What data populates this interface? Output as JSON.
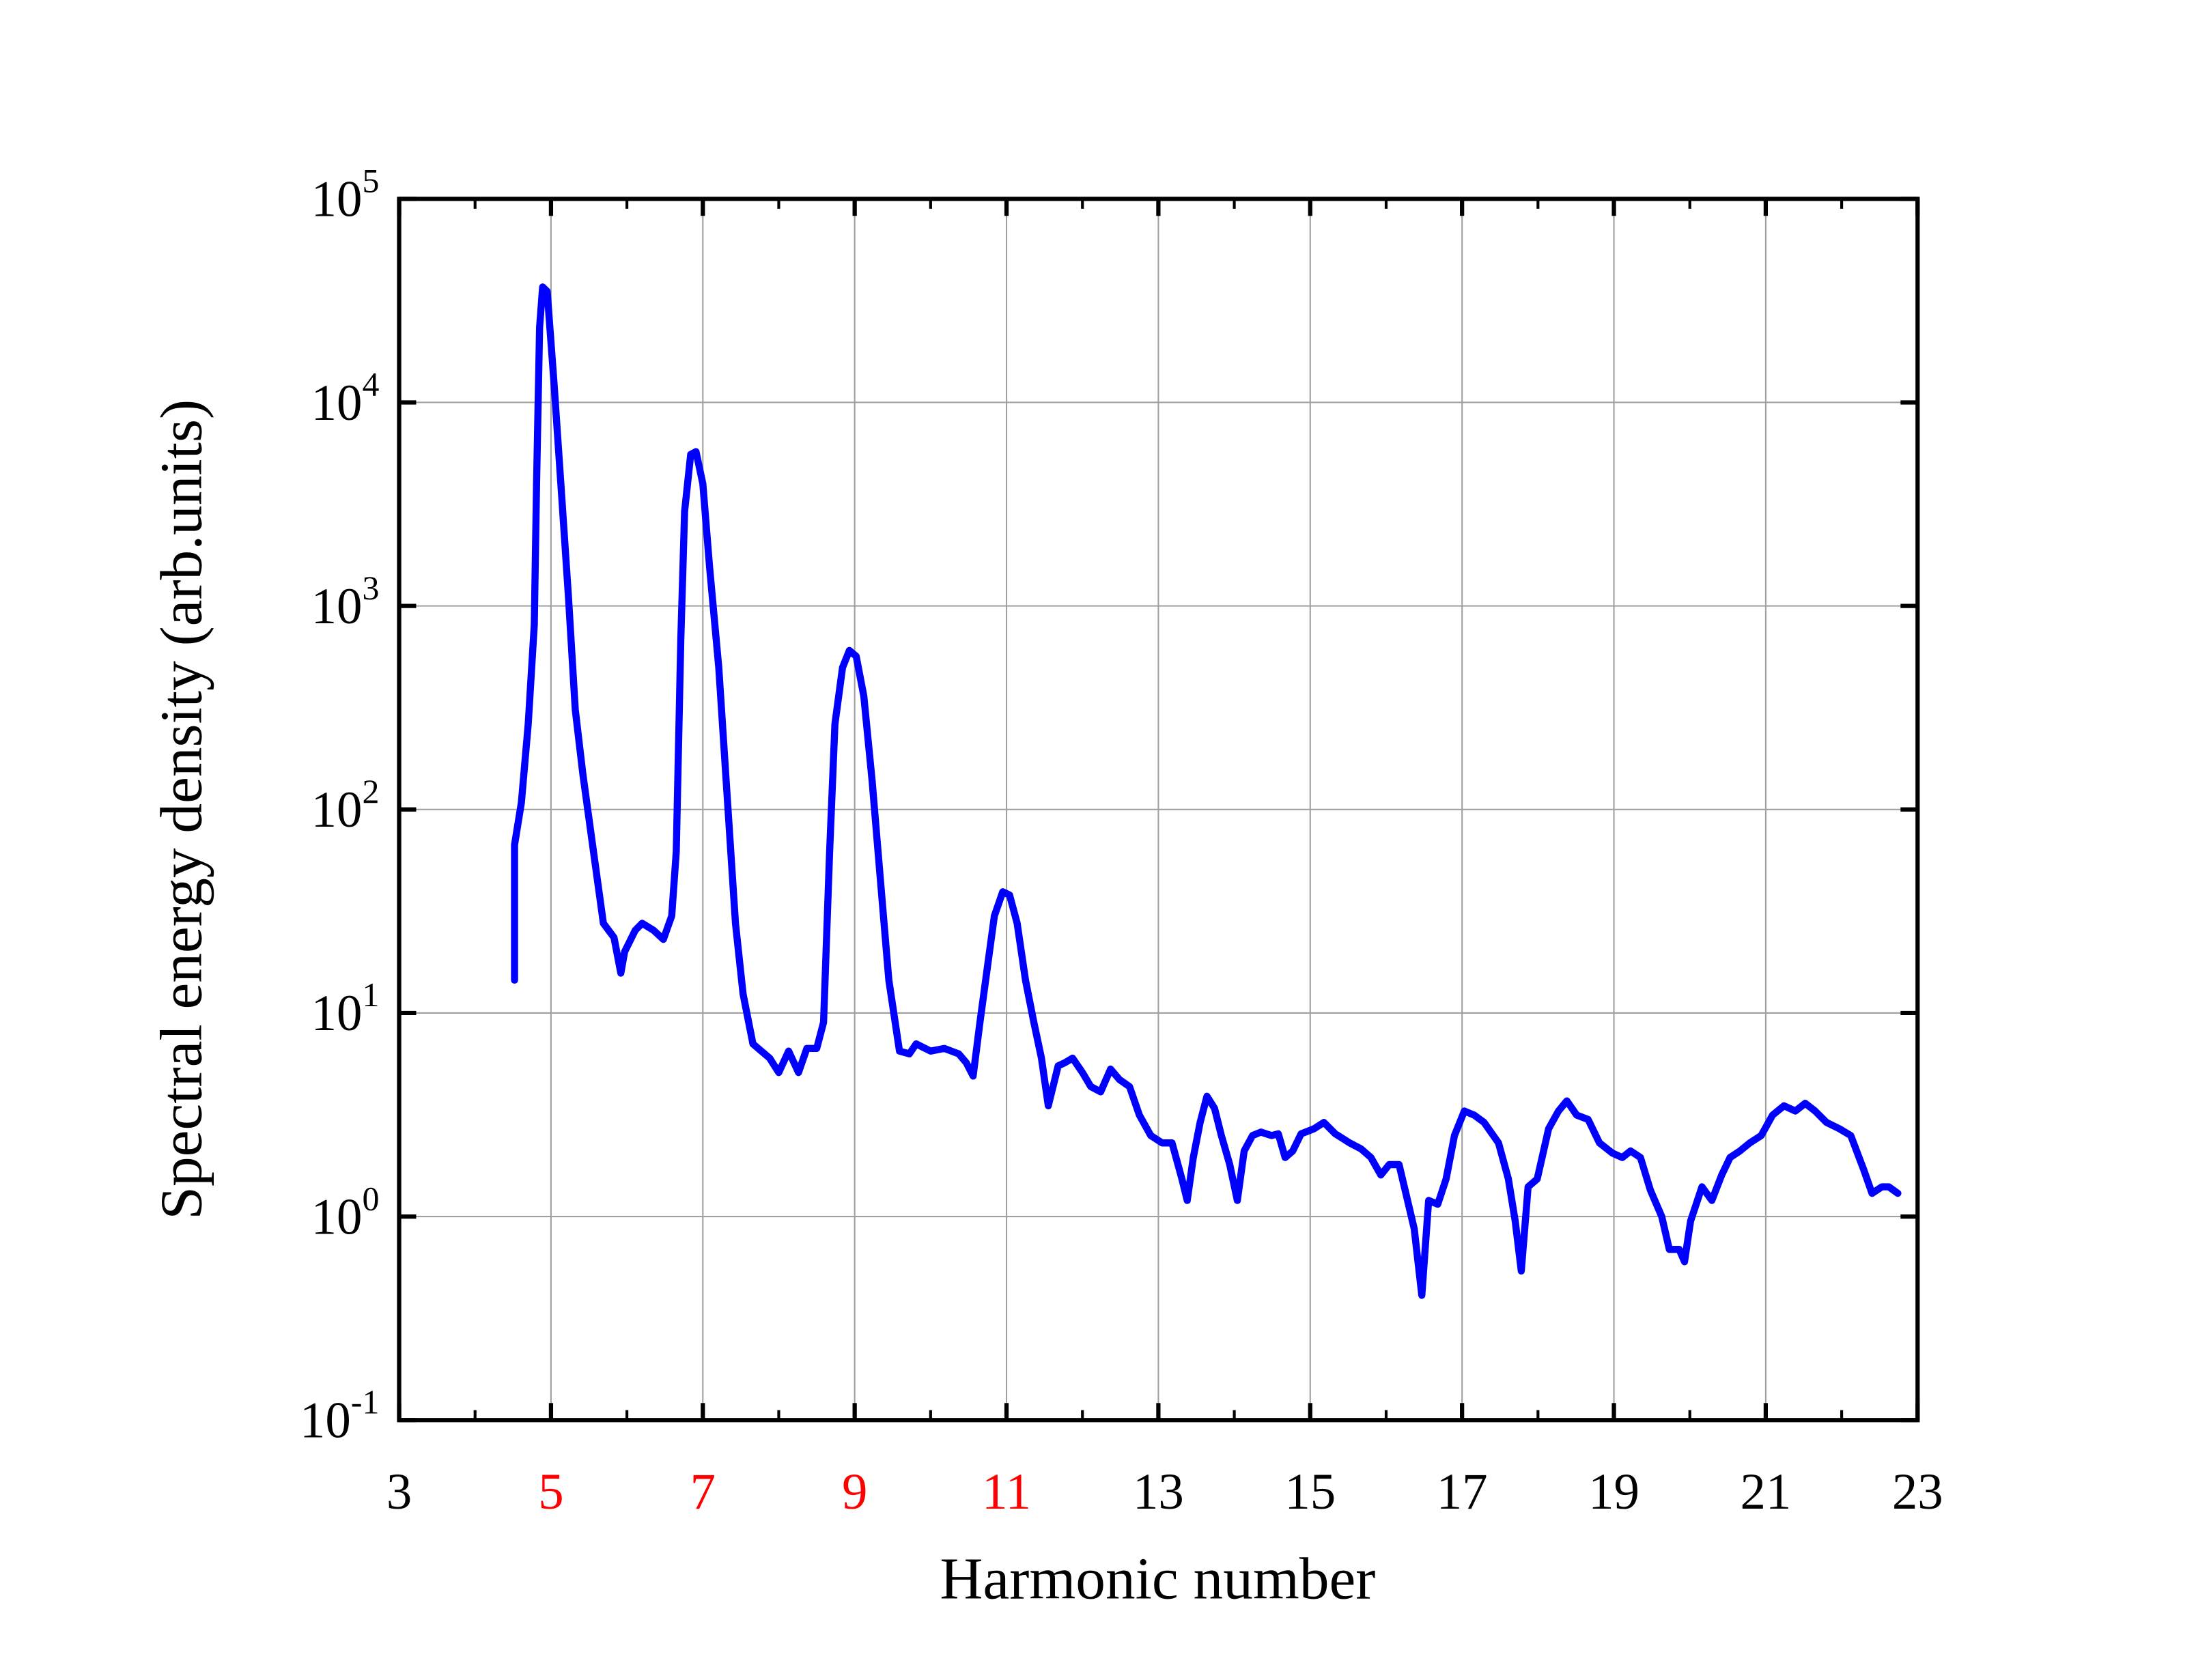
{
  "chart_data": {
    "type": "line",
    "xlabel": "Harmonic number",
    "ylabel": "Spectral energy density (arb.units)",
    "xlim": [
      3,
      23
    ],
    "xticks": [
      3,
      5,
      7,
      9,
      11,
      13,
      15,
      17,
      19,
      21,
      23
    ],
    "xtick_colors": [
      "#000000",
      "#ff0000",
      "#ff0000",
      "#ff0000",
      "#ff0000",
      "#000000",
      "#000000",
      "#000000",
      "#000000",
      "#000000",
      "#000000"
    ],
    "ylim": [
      0.1,
      100000
    ],
    "ylog": true,
    "yticks": [
      {
        "value": 0.1,
        "label": "10",
        "exponent": "-1"
      },
      {
        "value": 1,
        "label": "10",
        "exponent": "0"
      },
      {
        "value": 10,
        "label": "10",
        "exponent": "1"
      },
      {
        "value": 100,
        "label": "10",
        "exponent": "2"
      },
      {
        "value": 1000,
        "label": "10",
        "exponent": "3"
      },
      {
        "value": 10000,
        "label": "10",
        "exponent": "4"
      },
      {
        "value": 100000,
        "label": "10",
        "exponent": "5"
      }
    ],
    "grid": true,
    "mirror_ticks": true,
    "series": [
      {
        "color": "#0000ff",
        "x": [
          4.52,
          4.52,
          4.61,
          4.7,
          4.78,
          4.81,
          4.85,
          4.89,
          4.95,
          5.04,
          5.13,
          5.23,
          5.32,
          5.42,
          5.56,
          5.69,
          5.83,
          5.92,
          5.97,
          6.11,
          6.2,
          6.35,
          6.48,
          6.59,
          6.65,
          6.71,
          6.76,
          6.84,
          6.91,
          7.0,
          7.09,
          7.21,
          7.32,
          7.43,
          7.53,
          7.66,
          7.77,
          7.88,
          8.0,
          8.13,
          8.26,
          8.37,
          8.5,
          8.59,
          8.67,
          8.74,
          8.84,
          8.93,
          9.02,
          9.12,
          9.23,
          9.34,
          9.45,
          9.59,
          9.72,
          9.81,
          10.0,
          10.18,
          10.37,
          10.47,
          10.56,
          10.65,
          10.75,
          10.84,
          10.95,
          11.04,
          11.14,
          11.25,
          11.36,
          11.46,
          11.55,
          11.68,
          11.77,
          11.87,
          12.0,
          12.11,
          12.24,
          12.37,
          12.49,
          12.62,
          12.75,
          12.9,
          13.05,
          13.18,
          13.31,
          13.38,
          13.46,
          13.55,
          13.64,
          13.74,
          13.83,
          13.94,
          14.04,
          14.13,
          14.24,
          14.35,
          14.49,
          14.58,
          14.67,
          14.77,
          14.88,
          15.05,
          15.18,
          15.33,
          15.52,
          15.67,
          15.8,
          15.93,
          16.04,
          16.17,
          16.26,
          16.37,
          16.47,
          16.56,
          16.68,
          16.79,
          16.9,
          17.03,
          17.16,
          17.29,
          17.48,
          17.61,
          17.7,
          17.78,
          17.87,
          17.99,
          18.14,
          18.27,
          18.38,
          18.51,
          18.66,
          18.81,
          18.98,
          19.11,
          19.22,
          19.35,
          19.48,
          19.63,
          19.73,
          19.86,
          19.93,
          20.01,
          20.16,
          20.29,
          20.42,
          20.53,
          20.66,
          20.79,
          20.94,
          21.09,
          21.24,
          21.39,
          21.52,
          21.65,
          21.8,
          21.97,
          22.12,
          22.29,
          22.4,
          22.53,
          22.62,
          22.74
        ],
        "values": [
          14.5,
          67,
          108,
          263,
          807,
          3981,
          23400,
          36900,
          35100,
          12400,
          3981,
          1110,
          309,
          149,
          62,
          27.6,
          23.5,
          15.7,
          20,
          25.5,
          27.6,
          25.5,
          23,
          30,
          62,
          687,
          2917,
          5550,
          5730,
          3981,
          1535,
          498,
          117,
          27.6,
          12.4,
          7.05,
          6.5,
          6.0,
          5.1,
          6.5,
          5.1,
          6.7,
          6.7,
          9.0,
          62,
          263,
          498,
          604,
          566,
          361,
          138,
          44.6,
          14.5,
          6.5,
          6.3,
          7.05,
          6.5,
          6.7,
          6.3,
          5.7,
          4.9,
          9.0,
          17,
          30,
          39.4,
          38,
          27.6,
          14.5,
          9,
          6,
          3.5,
          5.5,
          5.7,
          6.0,
          5.1,
          4.35,
          4.1,
          5.3,
          4.7,
          4.35,
          3.15,
          2.5,
          2.3,
          2.3,
          1.53,
          1.2,
          1.95,
          2.9,
          3.9,
          3.4,
          2.5,
          1.8,
          1.2,
          2.1,
          2.5,
          2.6,
          2.5,
          2.55,
          1.95,
          2.1,
          2.55,
          2.7,
          2.9,
          2.55,
          2.3,
          2.15,
          1.95,
          1.6,
          1.8,
          1.8,
          1.3,
          0.87,
          0.41,
          1.2,
          1.15,
          1.53,
          2.5,
          3.3,
          3.15,
          2.9,
          2.3,
          1.53,
          0.95,
          0.54,
          1.4,
          1.53,
          2.7,
          3.3,
          3.7,
          3.15,
          3.0,
          2.3,
          2.05,
          1.95,
          2.1,
          1.95,
          1.35,
          1.0,
          0.69,
          0.69,
          0.6,
          0.95,
          1.4,
          1.2,
          1.6,
          1.95,
          2.1,
          2.3,
          2.5,
          3.15,
          3.5,
          3.3,
          3.6,
          3.3,
          2.9,
          2.7,
          2.5,
          1.7,
          1.3,
          1.4,
          1.4,
          1.3
        ]
      }
    ]
  }
}
